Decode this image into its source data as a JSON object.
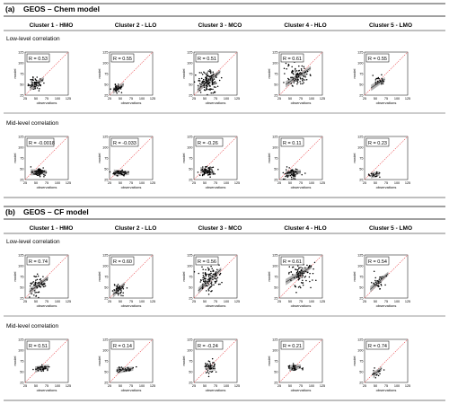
{
  "panels": [
    {
      "tag": "(a)",
      "title": "GEOS – Chem model",
      "clusters": [
        "Cluster 1 - HMO",
        "Cluster 2 - LLO",
        "Cluster 3 - MCO",
        "Cluster 4 - HLO",
        "Cluster 5 - LMO"
      ],
      "rows": [
        {
          "label": "Low-level correlation",
          "r": [
            "R = 0.53",
            "R = 0.55",
            "R = 0.51",
            "R = 0.61",
            "R = 0.55"
          ]
        },
        {
          "label": "Mid-level correlation",
          "r": [
            "R = -0.0018",
            "R = -0.033",
            "R = -0.26",
            "R = 0.11",
            "R = 0.23"
          ]
        }
      ]
    },
    {
      "tag": "(b)",
      "title": "GEOS – CF model",
      "clusters": [
        "Cluster 1 - HMO",
        "Cluster 2 - LLO",
        "Cluster 3 - MCO",
        "Cluster 4 - HLO",
        "Cluster 5 - LMO"
      ],
      "rows": [
        {
          "label": "Low-level correlation",
          "r": [
            "R = 0.74",
            "R = 0.60",
            "R = 0.56",
            "R = 0.61",
            "R = 0.54"
          ]
        },
        {
          "label": "Mid-level correlation",
          "r": [
            "R = 0.51",
            "R = 0.14",
            "R = -0.24",
            "R = 0.21",
            "R = 0.74"
          ]
        }
      ]
    }
  ],
  "chart_data": {
    "type": "scatter",
    "xlabel": "observations",
    "ylabel": "model",
    "xlim": [
      25,
      125
    ],
    "ylim": [
      25,
      125
    ],
    "xticks": [
      "25",
      "50",
      "75",
      "100",
      "125"
    ],
    "yticks": [
      "25",
      "50",
      "75",
      "100",
      "125"
    ],
    "reference_line": "1:1",
    "colors": {
      "points": "#000000",
      "fit": "#333333",
      "band": "#9a9a9a",
      "one_to_one": "#e8383d"
    },
    "plots": [
      [
        {
          "cx": 50,
          "cy": 52,
          "sx": 8,
          "sy": 8,
          "n": 55,
          "fit": [
            [
              36,
              42
            ],
            [
              68,
              63
            ]
          ]
        },
        {
          "cx": 44,
          "cy": 41,
          "sx": 6,
          "sy": 4,
          "n": 40,
          "fit": [
            [
              33,
              35
            ],
            [
              58,
              50
            ]
          ]
        },
        {
          "cx": 58,
          "cy": 56,
          "sx": 13,
          "sy": 13,
          "n": 130,
          "fit": [
            [
              33,
              37
            ],
            [
              86,
              80
            ]
          ]
        },
        {
          "cx": 68,
          "cy": 70,
          "sx": 13,
          "sy": 14,
          "n": 90,
          "fit": [
            [
              40,
              50
            ],
            [
              98,
              88
            ]
          ]
        },
        {
          "cx": 58,
          "cy": 60,
          "sx": 6,
          "sy": 5,
          "n": 25,
          "fit": [
            [
              40,
              42
            ],
            [
              72,
              62
            ]
          ]
        }
      ],
      [
        {
          "cx": 55,
          "cy": 42,
          "sx": 8,
          "sy": 5,
          "n": 65,
          "fit": [
            [
              38,
              42
            ],
            [
              75,
              42
            ]
          ]
        },
        {
          "cx": 52,
          "cy": 40,
          "sx": 10,
          "sy": 3,
          "n": 50,
          "fit": [
            [
              35,
              41
            ],
            [
              70,
              40
            ]
          ]
        },
        {
          "cx": 55,
          "cy": 44,
          "sx": 8,
          "sy": 6,
          "n": 70,
          "fit": [
            [
              40,
              47
            ],
            [
              72,
              40
            ]
          ]
        },
        {
          "cx": 55,
          "cy": 40,
          "sx": 9,
          "sy": 7,
          "n": 60,
          "fit": [
            [
              40,
              38
            ],
            [
              75,
              43
            ]
          ]
        },
        {
          "cx": 50,
          "cy": 37,
          "sx": 6,
          "sy": 3,
          "n": 18,
          "fit": [
            [
              40,
              35
            ],
            [
              60,
              39
            ]
          ]
        }
      ],
      [
        {
          "cx": 54,
          "cy": 56,
          "sx": 10,
          "sy": 12,
          "n": 60,
          "fit": [
            [
              35,
              40
            ],
            [
              78,
              72
            ]
          ]
        },
        {
          "cx": 45,
          "cy": 45,
          "sx": 6,
          "sy": 6,
          "n": 45,
          "fit": [
            [
              33,
              33
            ],
            [
              60,
              58
            ]
          ]
        },
        {
          "cx": 62,
          "cy": 68,
          "sx": 14,
          "sy": 15,
          "n": 110,
          "fit": [
            [
              35,
              42
            ],
            [
              88,
              92
            ]
          ]
        },
        {
          "cx": 72,
          "cy": 80,
          "sx": 14,
          "sy": 14,
          "n": 90,
          "fit": [
            [
              40,
              62
            ],
            [
              100,
              98
            ]
          ]
        },
        {
          "cx": 58,
          "cy": 62,
          "sx": 8,
          "sy": 8,
          "n": 30,
          "fit": [
            [
              38,
              45
            ],
            [
              80,
              82
            ]
          ]
        }
      ],
      [
        {
          "cx": 62,
          "cy": 58,
          "sx": 10,
          "sy": 4,
          "n": 40,
          "fit": [
            [
              48,
              55
            ],
            [
              80,
              62
            ]
          ]
        },
        {
          "cx": 62,
          "cy": 55,
          "sx": 10,
          "sy": 3,
          "n": 30,
          "fit": [
            [
              42,
              53
            ],
            [
              80,
              57
            ]
          ]
        },
        {
          "cx": 62,
          "cy": 60,
          "sx": 6,
          "sy": 8,
          "n": 40,
          "fit": [
            [
              50,
              63
            ],
            [
              75,
              57
            ]
          ]
        },
        {
          "cx": 60,
          "cy": 60,
          "sx": 7,
          "sy": 4,
          "n": 30,
          "fit": [
            [
              48,
              58
            ],
            [
              75,
              62
            ]
          ]
        },
        {
          "cx": 55,
          "cy": 50,
          "sx": 6,
          "sy": 6,
          "n": 15,
          "fit": [
            [
              45,
              42
            ],
            [
              65,
              58
            ]
          ]
        }
      ]
    ]
  }
}
